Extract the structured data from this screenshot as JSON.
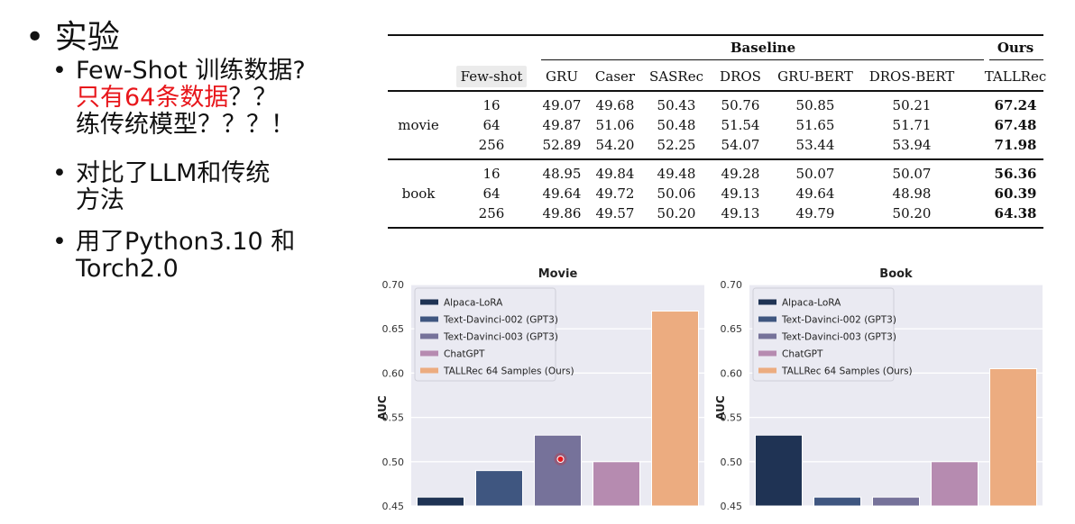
{
  "slide": {
    "heading": "实验",
    "bullets": [
      {
        "lines": [
          {
            "parts": [
              {
                "text": "Few-Shot 训练数据?",
                "red": false
              }
            ]
          },
          {
            "parts": [
              {
                "text": "只有64条数据",
                "red": true
              },
              {
                "text": "？？",
                "red": false
              }
            ]
          },
          {
            "parts": [
              {
                "text": "练传统模型？？？！",
                "red": false
              }
            ]
          }
        ]
      },
      {
        "lines": [
          {
            "parts": [
              {
                "text": "对比了LLM和传统",
                "red": false
              }
            ]
          },
          {
            "parts": [
              {
                "text": "方法",
                "red": false
              }
            ]
          }
        ]
      },
      {
        "lines": [
          {
            "parts": [
              {
                "text": "用了Python3.10 和",
                "red": false
              }
            ]
          },
          {
            "parts": [
              {
                "text": "Torch2.0",
                "red": false
              }
            ]
          }
        ]
      }
    ]
  },
  "table": {
    "group_baseline": "Baseline",
    "group_ours": "Ours",
    "columns": [
      "Few-shot",
      "GRU",
      "Caser",
      "SASRec",
      "DROS",
      "GRU-BERT",
      "DROS-BERT",
      "TALLRec"
    ],
    "sections": [
      {
        "name": "movie",
        "rows": [
          [
            "16",
            "49.07",
            "49.68",
            "50.43",
            "50.76",
            "50.85",
            "50.21",
            "67.24"
          ],
          [
            "64",
            "49.87",
            "51.06",
            "50.48",
            "51.54",
            "51.65",
            "51.71",
            "67.48"
          ],
          [
            "256",
            "52.89",
            "54.20",
            "52.25",
            "54.07",
            "53.44",
            "53.94",
            "71.98"
          ]
        ]
      },
      {
        "name": "book",
        "rows": [
          [
            "16",
            "48.95",
            "49.84",
            "49.48",
            "49.28",
            "50.07",
            "50.07",
            "56.36"
          ],
          [
            "64",
            "49.64",
            "49.72",
            "50.06",
            "49.13",
            "49.64",
            "48.98",
            "60.39"
          ],
          [
            "256",
            "49.86",
            "49.57",
            "50.20",
            "49.13",
            "49.79",
            "50.20",
            "64.38"
          ]
        ]
      }
    ]
  },
  "chart_data": [
    {
      "type": "bar",
      "title": "Movie",
      "ylabel": "AUC",
      "ylim": [
        0.45,
        0.7
      ],
      "yticks": [
        "0.45",
        "0.50",
        "0.55",
        "0.60",
        "0.65",
        "0.70"
      ],
      "legend_position": "top-left",
      "grid": true,
      "categories": [
        "Alpaca-LoRA",
        "Text-Davinci-002 (GPT3)",
        "Text-Davinci-003 (GPT3)",
        "ChatGPT",
        "TALLRec 64 Samples (Ours)"
      ],
      "colors": [
        "#1f3354",
        "#3f5680",
        "#76729a",
        "#b68bb0",
        "#ecac80"
      ],
      "values": [
        0.46,
        0.49,
        0.53,
        0.5,
        0.67
      ]
    },
    {
      "type": "bar",
      "title": "Book",
      "ylabel": "AUC",
      "ylim": [
        0.45,
        0.7
      ],
      "yticks": [
        "0.45",
        "0.50",
        "0.55",
        "0.60",
        "0.65",
        "0.70"
      ],
      "legend_position": "top-left",
      "grid": true,
      "categories": [
        "Alpaca-LoRA",
        "Text-Davinci-002 (GPT3)",
        "Text-Davinci-003 (GPT3)",
        "ChatGPT",
        "TALLRec 64 Samples (Ours)"
      ],
      "colors": [
        "#1f3354",
        "#3f5680",
        "#76729a",
        "#b68bb0",
        "#ecac80"
      ],
      "values": [
        0.53,
        0.46,
        0.46,
        0.5,
        0.605
      ]
    }
  ],
  "colors": {
    "red_text": "#e8161b",
    "plot_bg": "#eaeaf2",
    "cursor": "#e8161b"
  }
}
